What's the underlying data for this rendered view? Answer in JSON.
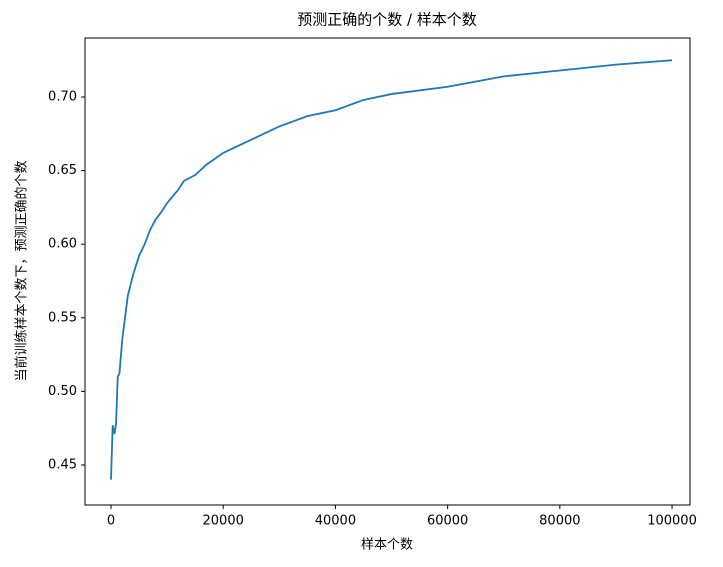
{
  "chart_data": {
    "type": "line",
    "title": "预测正确的个数 / 样本个数",
    "x_label": "样本个数",
    "y_label": "当前训练样本个数下，预测正确的个数",
    "x": [
      0,
      300,
      600,
      900,
      1200,
      1500,
      2000,
      2500,
      3000,
      4000,
      5000,
      6000,
      7000,
      8000,
      9000,
      10000,
      12000,
      13000,
      15000,
      17000,
      20000,
      25000,
      30000,
      35000,
      40000,
      45000,
      50000,
      60000,
      70000,
      80000,
      90000,
      100000
    ],
    "series": [
      {
        "color": "#1f77b4",
        "values": [
          0.44,
          0.477,
          0.471,
          0.478,
          0.51,
          0.512,
          0.535,
          0.55,
          0.565,
          0.58,
          0.592,
          0.6,
          0.61,
          0.617,
          0.622,
          0.628,
          0.637,
          0.643,
          0.647,
          0.654,
          0.662,
          0.671,
          0.68,
          0.687,
          0.691,
          0.698,
          0.702,
          0.707,
          0.714,
          0.718,
          0.722,
          0.725
        ]
      }
    ],
    "xlim": [
      -4634,
      103200
    ],
    "ylim": [
      0.4228,
      0.7401
    ],
    "xticks": [
      0,
      20000,
      40000,
      60000,
      80000,
      100000
    ],
    "yticks": [
      0.45,
      {
        "value": 0.5,
        "label": "0.50"
      },
      0.55,
      {
        "value": 0.6,
        "label": "0.60"
      },
      0.65,
      {
        "value": 0.7,
        "label": "0.70"
      }
    ]
  }
}
